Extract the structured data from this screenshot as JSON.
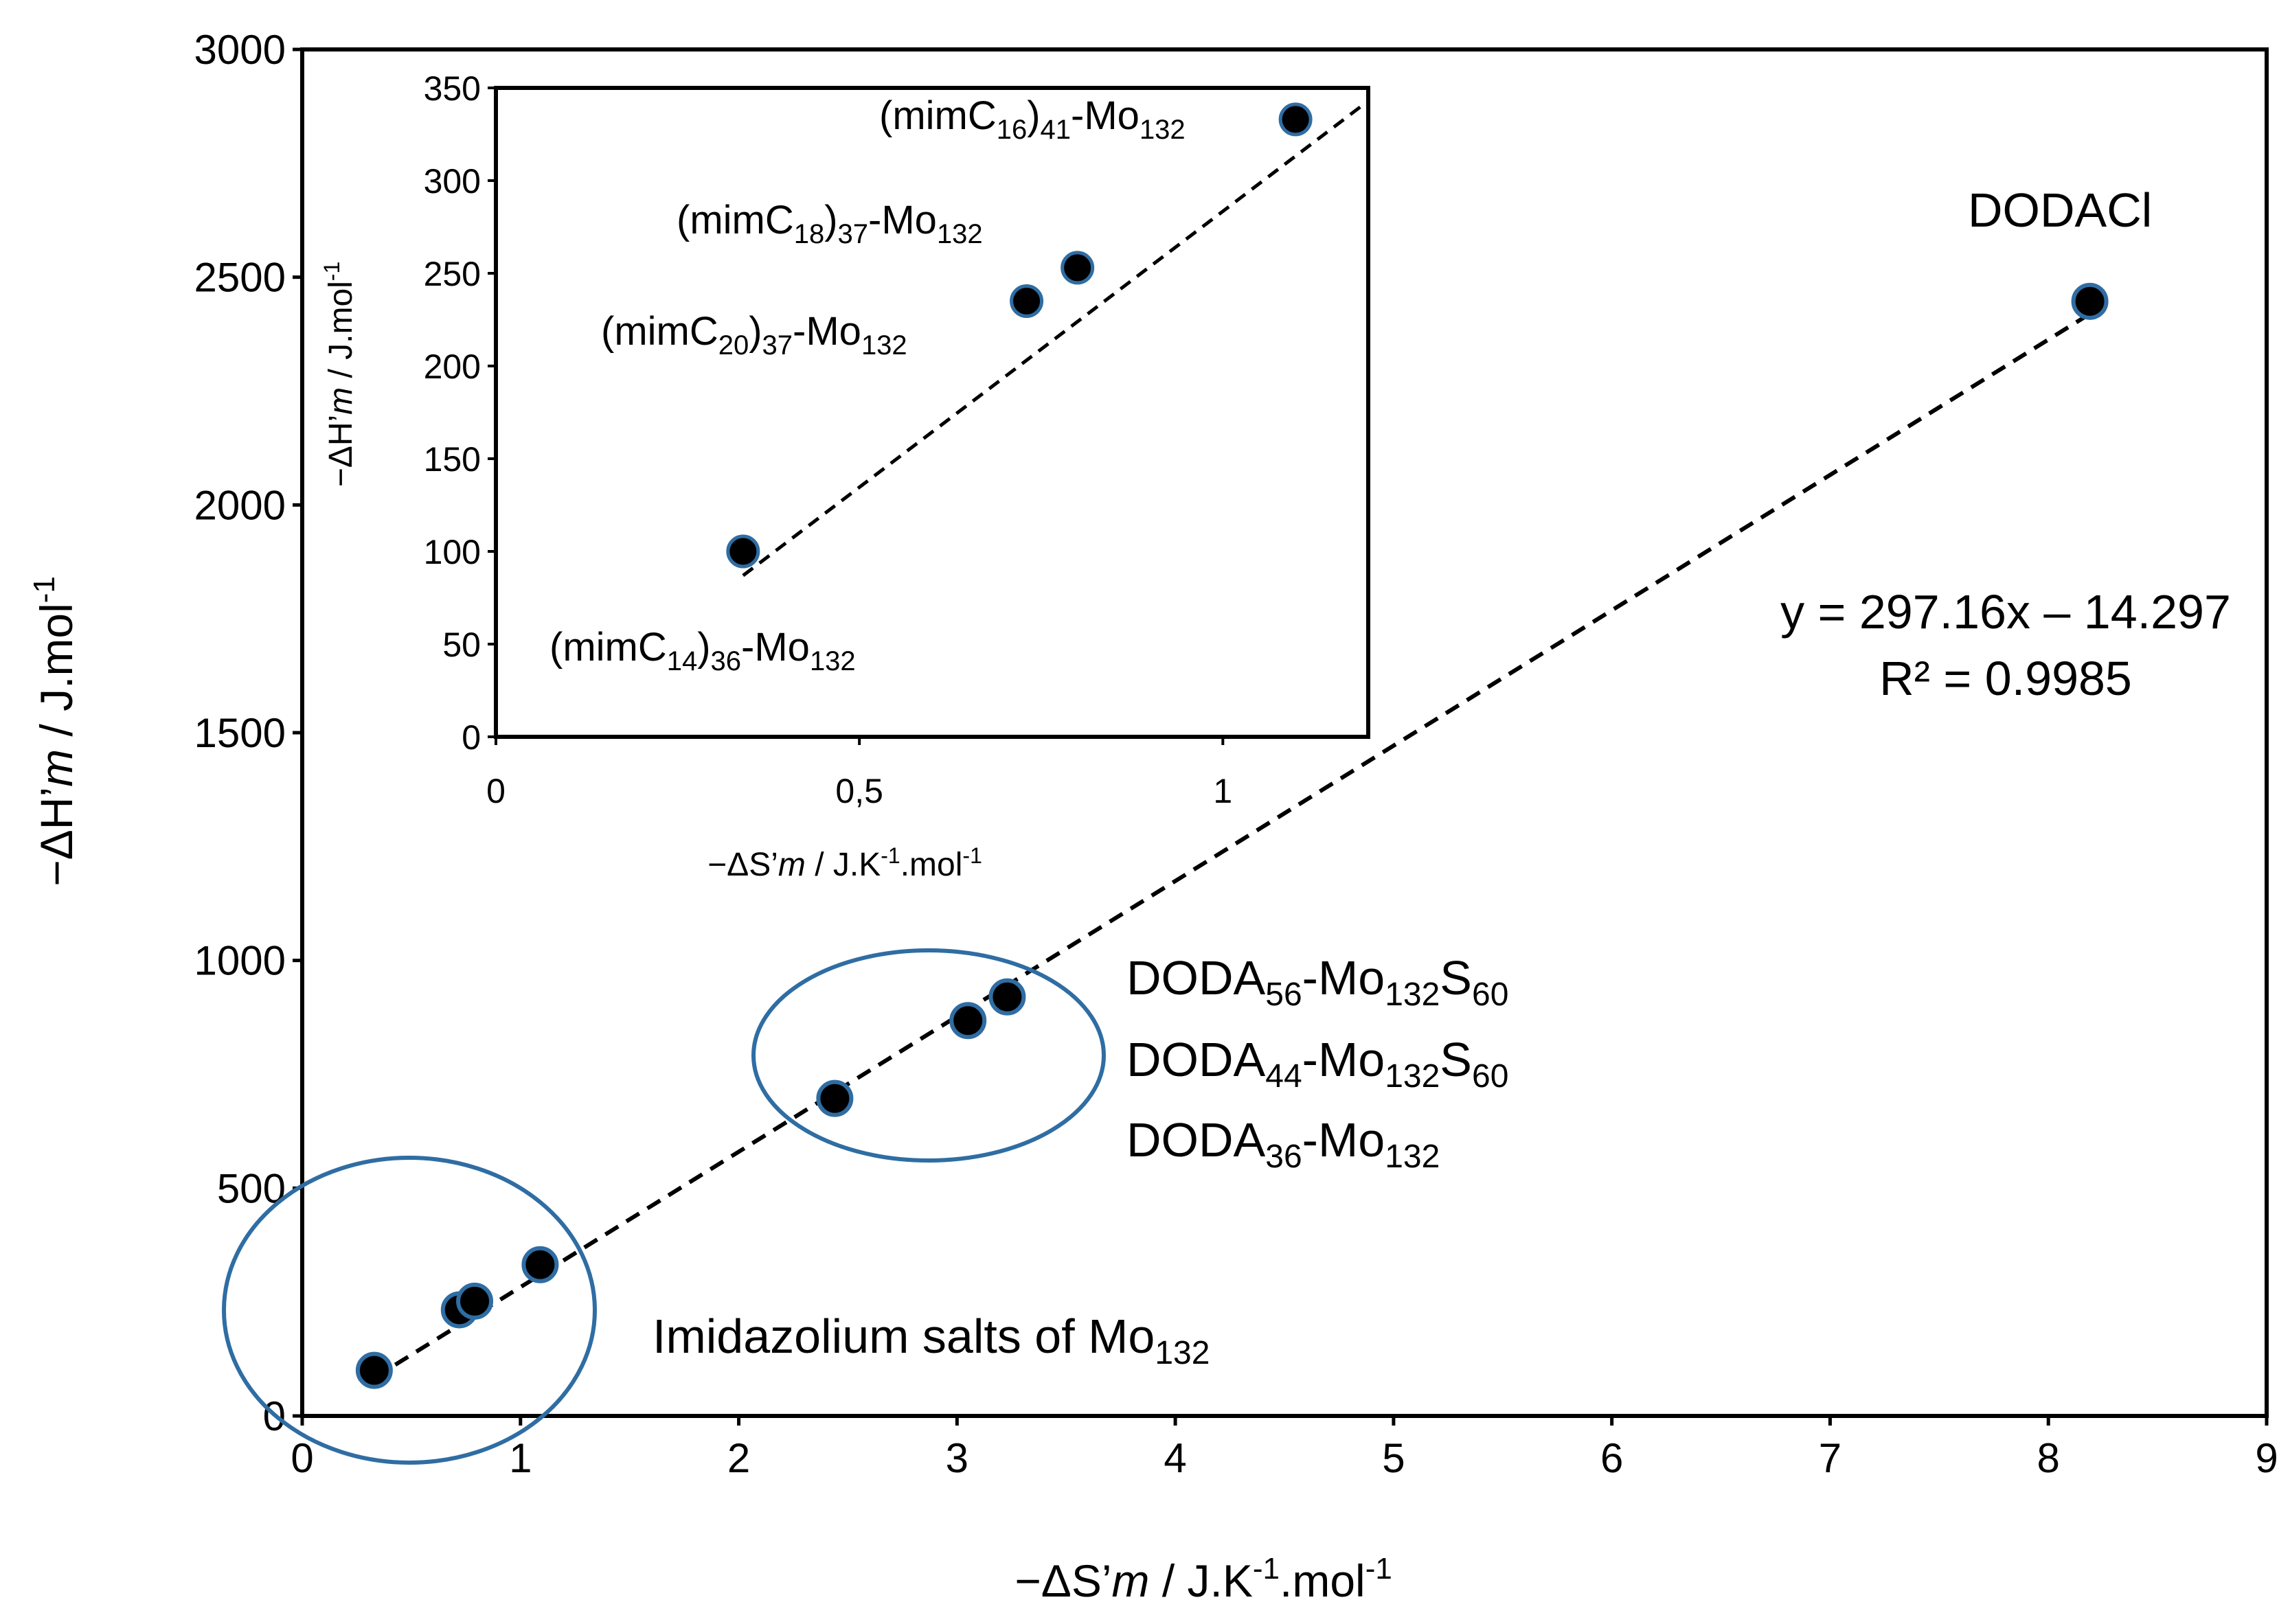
{
  "chart_data": [
    {
      "type": "scatter",
      "name": "main",
      "xlabel": "−ΔS’m / J.K-1.mol-1",
      "xlabel_parts": {
        "quantity": "−ΔS’",
        "m": "m",
        "unit": " / J.K",
        "exp1": "-1",
        "unit2": ".mol",
        "exp2": "-1"
      },
      "ylabel_parts": {
        "quantity": "−ΔH’",
        "m": "m",
        "unit": " / J.mol",
        "exp": "-1"
      },
      "xlim": [
        0,
        9
      ],
      "ylim": [
        0,
        3000
      ],
      "x_ticks": [
        "0",
        "1",
        "2",
        "3",
        "4",
        "5",
        "6",
        "7",
        "8",
        "9"
      ],
      "y_ticks": [
        "0",
        "500",
        "1000",
        "1500",
        "2000",
        "2500",
        "3000"
      ],
      "series": [
        {
          "name": "data",
          "points": [
            {
              "x": 0.33,
              "y": 100
            },
            {
              "x": 0.72,
              "y": 233
            },
            {
              "x": 0.79,
              "y": 252
            },
            {
              "x": 1.09,
              "y": 332
            },
            {
              "x": 2.44,
              "y": 697
            },
            {
              "x": 3.05,
              "y": 868
            },
            {
              "x": 3.23,
              "y": 920
            },
            {
              "x": 8.19,
              "y": 2447
            }
          ]
        }
      ],
      "trendline": {
        "slope": 297.16,
        "intercept": -14.297,
        "x_range": [
          0.33,
          8.19
        ]
      },
      "equation": "y = 297.16x – 14.297",
      "r_squared": "R² = 0.9985",
      "labels": {
        "dodacl": "DODACl",
        "doda56": {
          "a": "DODA",
          "s1": "56",
          "b": "-Mo",
          "s2": "132",
          "c": "S",
          "s3": "60"
        },
        "doda44": {
          "a": "DODA",
          "s1": "44",
          "b": "-Mo",
          "s2": "132",
          "c": "S",
          "s3": "60"
        },
        "doda36": {
          "a": "DODA",
          "s1": "36",
          "b": "-Mo",
          "s2": "132"
        },
        "imidazolium": {
          "a": "Imidazolium salts of Mo",
          "s1": "132"
        }
      }
    },
    {
      "type": "scatter",
      "name": "inset",
      "xlabel_parts": {
        "quantity": "−ΔS’",
        "m": "m",
        "unit": " / J.K",
        "exp1": "-1",
        "unit2": ".mol",
        "exp2": "-1"
      },
      "ylabel_parts": {
        "quantity": "−ΔH’",
        "m": "m",
        "unit": " / J.mol",
        "exp": "-1"
      },
      "xlim": [
        0,
        1.2
      ],
      "ylim": [
        0,
        350
      ],
      "x_ticks": [
        {
          "v": 0,
          "label": "0"
        },
        {
          "v": 0.5,
          "label": "0,5"
        },
        {
          "v": 1,
          "label": "1"
        }
      ],
      "y_ticks": [
        "0",
        "50",
        "100",
        "150",
        "200",
        "250",
        "300",
        "350"
      ],
      "series": [
        {
          "name": "imidazolium",
          "points": [
            {
              "x": 0.34,
              "y": 100
            },
            {
              "x": 0.73,
              "y": 235
            },
            {
              "x": 0.8,
              "y": 253
            },
            {
              "x": 1.1,
              "y": 333
            }
          ]
        }
      ],
      "trendline": {
        "x_range": [
          0.34,
          1.19
        ],
        "y_range": [
          87,
          340
        ]
      },
      "labels": {
        "c16": {
          "a": "(mimC",
          "s1": "16",
          "b": ")",
          "s2": "41",
          "c": "-Mo",
          "s3": "132"
        },
        "c18": {
          "a": "(mimC",
          "s1": "18",
          "b": ")",
          "s2": "37",
          "c": "-Mo",
          "s3": "132"
        },
        "c20": {
          "a": "(mimC",
          "s1": "20",
          "b": ")",
          "s2": "37",
          "c": "-Mo",
          "s3": "132"
        },
        "c14": {
          "a": "(mimC",
          "s1": "14",
          "b": ")",
          "s2": "36",
          "c": "-Mo",
          "s3": "132"
        }
      }
    }
  ]
}
